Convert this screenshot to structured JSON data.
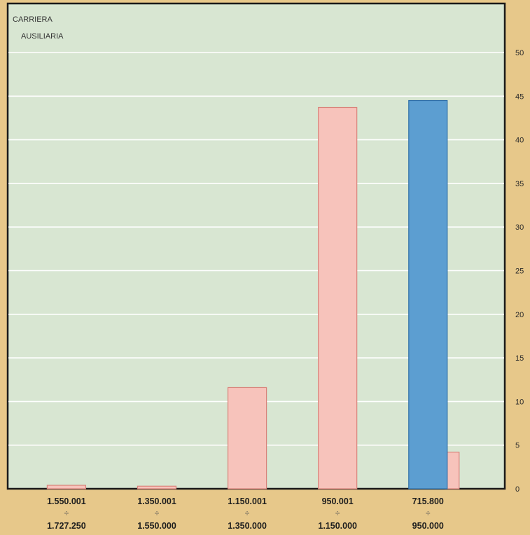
{
  "chart_data": {
    "type": "bar",
    "title_lines": [
      "CARRIERA",
      "AUSILIARIA"
    ],
    "categories": [
      {
        "from": "1.550.001",
        "sep": "÷",
        "to": "1.727.250"
      },
      {
        "from": "1.350.001",
        "sep": "÷",
        "to": "1.550.000"
      },
      {
        "from": "1.150.001",
        "sep": "÷",
        "to": "1.350.000"
      },
      {
        "from": "950.001",
        "sep": "÷",
        "to": "1.150.000"
      },
      {
        "from": "715.800",
        "sep": "÷",
        "to": "950.000"
      }
    ],
    "series": [
      {
        "color": "#f7c3bb",
        "stroke": "#d9827a",
        "values": [
          0.4,
          0.3,
          11.6,
          43.7,
          4.2
        ]
      },
      {
        "color": "#5c9ed1",
        "stroke": "#2f6fa8",
        "values": [
          null,
          null,
          null,
          null,
          44.5
        ]
      }
    ],
    "y_ticks": [
      0,
      5,
      10,
      15,
      20,
      25,
      30,
      35,
      40,
      45,
      50
    ],
    "ylim": [
      0,
      50
    ],
    "y_axis_side": "right",
    "grid": true,
    "colors": {
      "background": "#e7c88a",
      "plot": "#d8e6d2",
      "grid": "#ffffff"
    }
  }
}
